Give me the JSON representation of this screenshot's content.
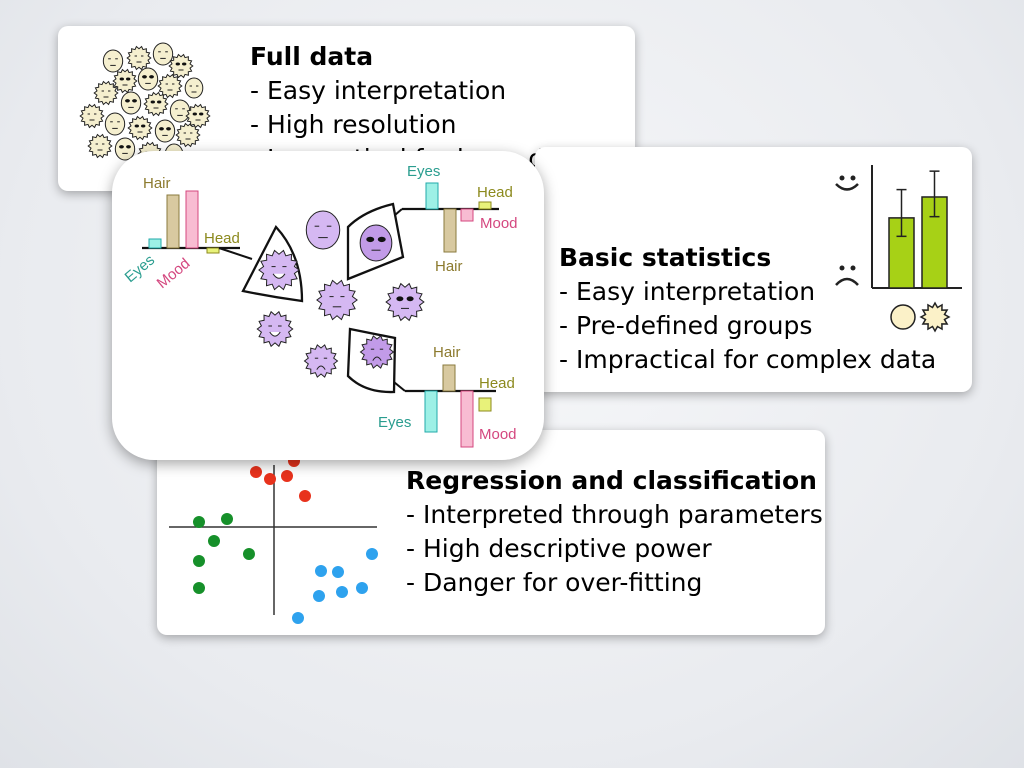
{
  "cards": {
    "full_data": {
      "title": "Full data",
      "bullets": [
        "- Easy interpretation",
        "- High resolution",
        "- Impractical for large datasets"
      ]
    },
    "basic_statistics": {
      "title": "Basic statistics",
      "bullets": [
        "- Easy interpretation",
        "- Pre-defined groups",
        "- Impractical for complex data"
      ]
    },
    "regression": {
      "title": "Regression and classification",
      "bullets": [
        "- Interpreted through parameters",
        "- High descriptive power",
        "- Danger for over-fitting"
      ]
    }
  },
  "dim_figure": {
    "labels": {
      "hair": "Hair",
      "head": "Head",
      "eyes": "Eyes",
      "mood": "Mood"
    },
    "colors": {
      "eyes": "#66e3d6",
      "hair": "#c9b47a",
      "mood": "#f08bb2",
      "head": "#dfee3a",
      "face_fill": "#d5b8f2",
      "eyes_text": "#2a9d8f",
      "hair_text": "#8c7a2e",
      "mood_text": "#d4477f",
      "head_text": "#8c8a1e"
    }
  },
  "stats_chart": {
    "bar_color": "#a7d116",
    "bars": [
      {
        "group": "smooth-face",
        "value": 0.57,
        "err_low": 0.42,
        "err_high": 0.8
      },
      {
        "group": "spiky-face",
        "value": 0.74,
        "err_low": 0.58,
        "err_high": 0.95
      }
    ]
  },
  "scatter": {
    "colors": {
      "red": "#e8321c",
      "green": "#16902a",
      "blue": "#2ea2ee"
    }
  }
}
